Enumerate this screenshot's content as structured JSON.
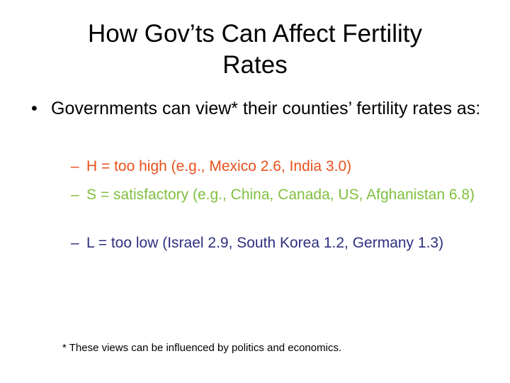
{
  "title": {
    "line1": "How Gov’ts Can Affect Fertility",
    "line2": "Rates"
  },
  "bullet": {
    "marker": "•",
    "text": "Governments can view* their counties’ fertility rates as:"
  },
  "sub_items": [
    {
      "marker": "–",
      "text": "H = too high (e.g., Mexico 2.6, India 3.0)",
      "color": "#e8511b"
    },
    {
      "marker": "–",
      "text": "S = satisfactory (e.g., China, Canada, US, Afghanistan 6.8)",
      "color": "#7fbf3f"
    },
    {
      "marker": "–",
      "text": "L = too low (Israel 2.9, South Korea 1.2, Germany 1.3)",
      "color": "#2e2f7f"
    }
  ],
  "footnote": "* These views can be influenced by politics and economics."
}
